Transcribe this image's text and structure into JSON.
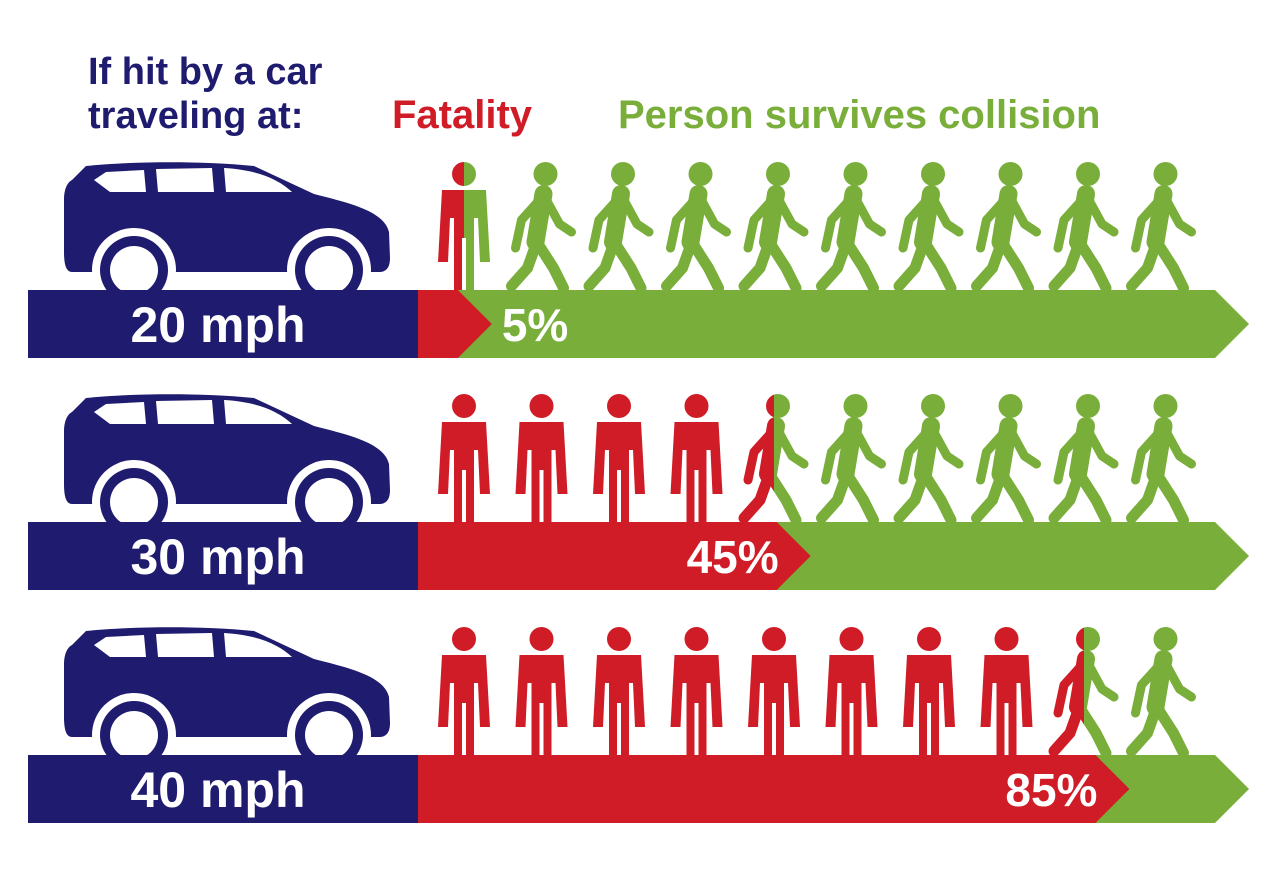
{
  "header": {
    "question": "If hit by a car traveling at:",
    "fatality_label": "Fatality",
    "survive_label": "Person survives collision"
  },
  "colors": {
    "navy": "#1f1c6f",
    "red": "#cf1c26",
    "green": "#79ae3a",
    "white": "#ffffff"
  },
  "icons": [
    "car-icon",
    "standing-person-icon",
    "walking-person-icon"
  ],
  "chart_data": {
    "type": "bar",
    "orientation": "horizontal",
    "stacked": true,
    "categories": [
      "20 mph",
      "30 mph",
      "40 mph"
    ],
    "series": [
      {
        "name": "Fatality",
        "values": [
          5,
          45,
          85
        ],
        "labels": [
          "5%",
          "45%",
          "85%"
        ]
      },
      {
        "name": "Person survives collision",
        "values": [
          95,
          55,
          15
        ]
      }
    ],
    "pictogram": {
      "people_per_row": 10
    },
    "ylim": [
      0,
      100
    ]
  }
}
